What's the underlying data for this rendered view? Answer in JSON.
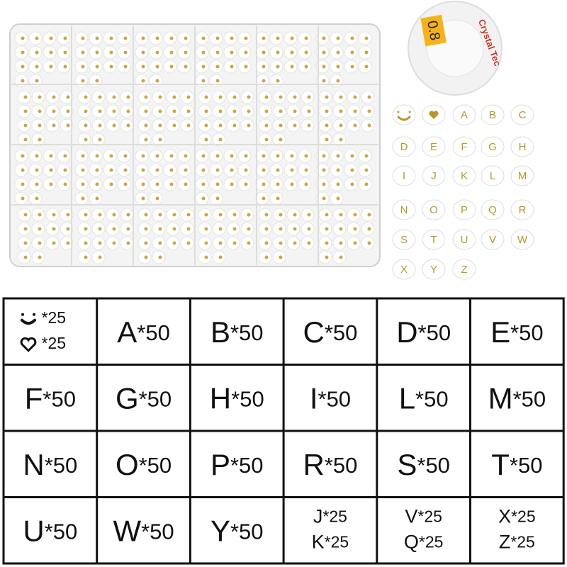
{
  "spool": {
    "size": "0.8",
    "brand": "Crystal Tec"
  },
  "beads": {
    "rows": [
      [
        "A",
        "B",
        "C"
      ],
      [
        "D",
        "E",
        "F",
        "G",
        "H"
      ],
      [
        "I",
        "J",
        "K",
        "L",
        "M"
      ],
      [
        "N",
        "O",
        "P",
        "Q",
        "R"
      ],
      [
        "S",
        "T",
        "U",
        "V",
        "W"
      ],
      [
        "X",
        "Y",
        "Z"
      ]
    ]
  },
  "table": {
    "rows": [
      [
        [
          {
            "count": "*25"
          },
          {
            "count": "*25"
          }
        ],
        [
          {
            "letter": "A",
            "count": "*50"
          }
        ],
        [
          {
            "letter": "B",
            "count": "*50"
          }
        ],
        [
          {
            "letter": "C",
            "count": "*50"
          }
        ],
        [
          {
            "letter": "D",
            "count": "*50"
          }
        ],
        [
          {
            "letter": "E",
            "count": "*50"
          }
        ]
      ],
      [
        [
          {
            "letter": "F",
            "count": "*50"
          }
        ],
        [
          {
            "letter": "G",
            "count": "*50"
          }
        ],
        [
          {
            "letter": "H",
            "count": "*50"
          }
        ],
        [
          {
            "letter": "I",
            "count": "*50"
          }
        ],
        [
          {
            "letter": "L",
            "count": "*50"
          }
        ],
        [
          {
            "letter": "M",
            "count": "*50"
          }
        ]
      ],
      [
        [
          {
            "letter": "N",
            "count": "*50"
          }
        ],
        [
          {
            "letter": "O",
            "count": "*50"
          }
        ],
        [
          {
            "letter": "P",
            "count": "*50"
          }
        ],
        [
          {
            "letter": "R",
            "count": "*50"
          }
        ],
        [
          {
            "letter": "S",
            "count": "*50"
          }
        ],
        [
          {
            "letter": "T",
            "count": "*50"
          }
        ]
      ],
      [
        [
          {
            "letter": "U",
            "count": "*50"
          }
        ],
        [
          {
            "letter": "W",
            "count": "*50"
          }
        ],
        [
          {
            "letter": "Y",
            "count": "*50"
          }
        ],
        [
          {
            "letter": "J",
            "count": "*25"
          },
          {
            "letter": "K",
            "count": "*25"
          }
        ],
        [
          {
            "letter": "V",
            "count": "*25"
          },
          {
            "letter": "Q",
            "count": "*25"
          }
        ],
        [
          {
            "letter": "X",
            "count": "*25"
          },
          {
            "letter": "Z",
            "count": "*25"
          }
        ]
      ]
    ]
  }
}
